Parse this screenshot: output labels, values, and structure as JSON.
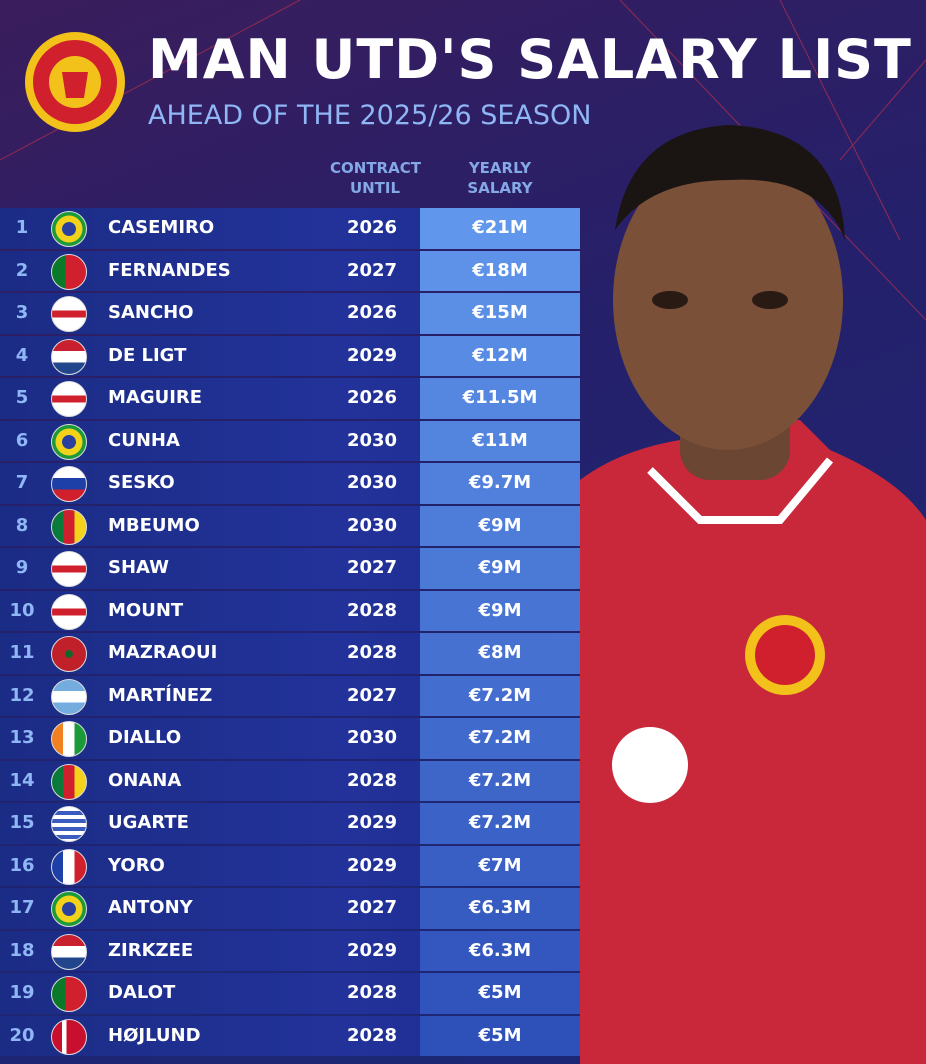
{
  "header": {
    "title": "MAN UTD'S SALARY LIST",
    "subtitle": "AHEAD OF THE 2025/26 SEASON"
  },
  "table": {
    "columns": [
      "CONTRACT UNTIL",
      "YEARLY SALARY"
    ],
    "rows": [
      [
        1,
        "CASEMIRO",
        2026,
        "€21M"
      ],
      [
        2,
        "FERNANDES",
        2027,
        "€18M"
      ],
      [
        3,
        "SANCHO",
        2026,
        "€15M"
      ],
      [
        4,
        "DE LIGT",
        2029,
        "€12M"
      ],
      [
        5,
        "MAGUIRE",
        2026,
        "€11.5M"
      ],
      [
        6,
        "CUNHA",
        2030,
        "€11M"
      ],
      [
        7,
        "SESKO",
        2030,
        "€9.7M"
      ],
      [
        8,
        "MBEUMO",
        2030,
        "€9M"
      ],
      [
        9,
        "SHAW",
        2027,
        "€9M"
      ],
      [
        10,
        "MOUNT",
        2028,
        "€9M"
      ],
      [
        11,
        "MAZRAOUI",
        2028,
        "€8M"
      ],
      [
        12,
        "MARTÍNEZ",
        2027,
        "€7.2M"
      ],
      [
        13,
        "DIALLO",
        2030,
        "€7.2M"
      ],
      [
        14,
        "ONANA",
        2028,
        "€7.2M"
      ],
      [
        15,
        "UGARTE",
        2029,
        "€7.2M"
      ],
      [
        16,
        "YORO",
        2029,
        "€7M"
      ],
      [
        17,
        "ANTONY",
        2027,
        "€6.3M"
      ],
      [
        18,
        "ZIRKZEE",
        2029,
        "€6.3M"
      ],
      [
        19,
        "DALOT",
        2028,
        "€5M"
      ],
      [
        20,
        "HØJLUND",
        2028,
        "€5M"
      ]
    ]
  }
}
